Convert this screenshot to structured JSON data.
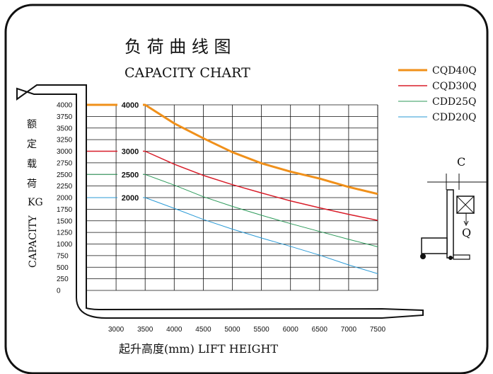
{
  "chart_data": {
    "type": "line",
    "title_cn": "负 荷 曲 线 图",
    "title": "CAPACITY CHART",
    "xlabel": "起升高度(mm)  LIFT HEIGHT",
    "ylabel_cn": [
      "额",
      "定",
      "载",
      "荷"
    ],
    "ylabel_unit": "KG",
    "ylabel": "CAPACITY",
    "x_ticks": [
      "3000",
      "3500",
      "4000",
      "4500",
      "5000",
      "5500",
      "6000",
      "6500",
      "7000",
      "7500"
    ],
    "x_range": [
      2500,
      7500
    ],
    "y_ticks": [
      "0",
      "250",
      "500",
      "750",
      "1000",
      "1250",
      "1500",
      "1750",
      "2000",
      "2250",
      "2500",
      "2750",
      "3000",
      "3250",
      "3500",
      "3750",
      "4000"
    ],
    "ylim": [
      0,
      4000
    ],
    "grid": true,
    "legend_position": "top-right",
    "series": [
      {
        "name": "CQD40Q",
        "color": "#f0901a",
        "width": 3,
        "level_label": "4000",
        "x": [
          2500,
          3500,
          4000,
          4500,
          5000,
          5500,
          6000,
          6500,
          7000,
          7500
        ],
        "y": [
          4000,
          4000,
          3600,
          3280,
          2980,
          2740,
          2560,
          2410,
          2230,
          2080
        ]
      },
      {
        "name": "CQD30Q",
        "color": "#d81e2a",
        "width": 1.5,
        "level_label": "3000",
        "x": [
          2500,
          3500,
          4000,
          4500,
          5000,
          5500,
          6000,
          6500,
          7000,
          7500
        ],
        "y": [
          3000,
          3000,
          2720,
          2480,
          2280,
          2100,
          1930,
          1780,
          1640,
          1510
        ]
      },
      {
        "name": "CDD25Q",
        "color": "#2c9a5a",
        "width": 1,
        "level_label": "2500",
        "x": [
          2500,
          3500,
          4000,
          4500,
          5000,
          5500,
          6000,
          6500,
          7000,
          7500
        ],
        "y": [
          2500,
          2500,
          2270,
          2020,
          1810,
          1620,
          1440,
          1270,
          1100,
          940
        ]
      },
      {
        "name": "CDD20Q",
        "color": "#2a9ad6",
        "width": 1,
        "level_label": "2000",
        "x": [
          2500,
          3500,
          4000,
          4500,
          5000,
          5500,
          6000,
          6500,
          7000,
          7500
        ],
        "y": [
          2000,
          2000,
          1770,
          1530,
          1320,
          1130,
          950,
          760,
          550,
          360
        ]
      }
    ]
  },
  "diagram": {
    "c_label": "C",
    "q_label": "Q"
  }
}
